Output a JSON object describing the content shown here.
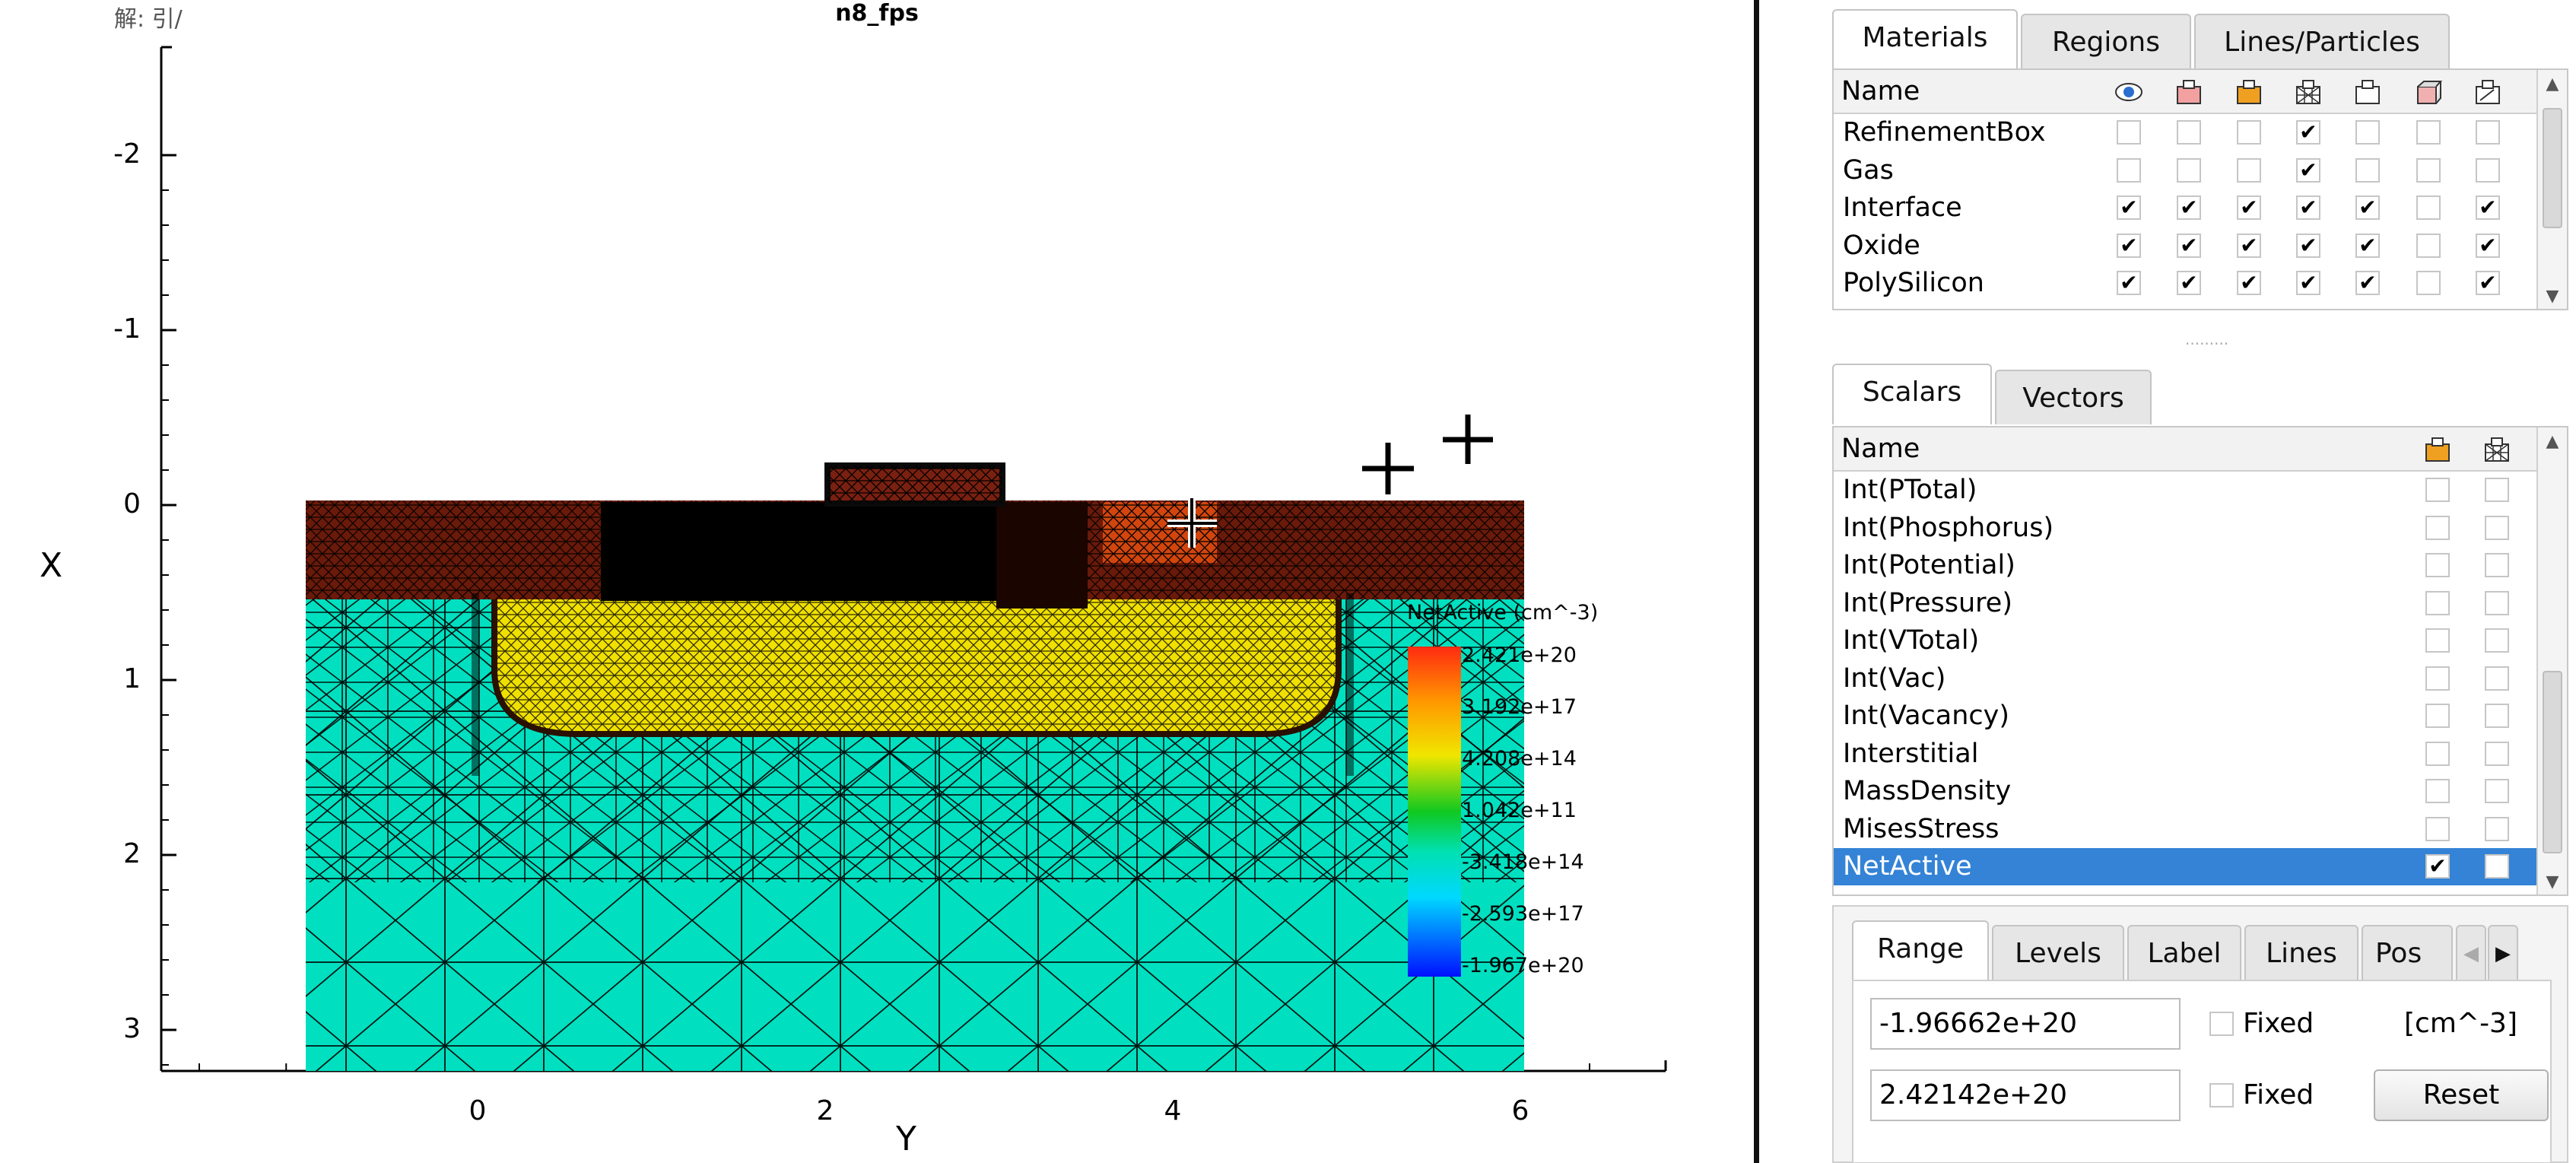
{
  "plot": {
    "title": "n8_fps",
    "corner_text": "解: 引/",
    "xlabel": "X",
    "ylabel": "Y",
    "left_ticks": [
      "-2",
      "-1",
      "0",
      "1",
      "2",
      "3"
    ],
    "bottom_ticks": [
      "0",
      "2",
      "4",
      "6"
    ],
    "colorbar": {
      "title": "NetActive (cm^-3)",
      "labels": [
        "2.421e+20",
        "3.192e+17",
        "4.208e+14",
        "1.042e+11",
        "-3.418e+14",
        "-2.593e+17",
        "-1.967e+20"
      ]
    }
  },
  "materials_panel": {
    "tabs": [
      "Materials",
      "Regions",
      "Lines/Particles"
    ],
    "active_tab": "Materials",
    "header_name": "Name",
    "header_icons": [
      "eye-icon",
      "red-fill-icon",
      "orange-fill-icon",
      "mesh-icon",
      "outline-icon",
      "box-3d-icon",
      "edit-region-icon"
    ],
    "rows": [
      {
        "name": "RefinementBox",
        "checks": [
          false,
          false,
          false,
          true,
          false,
          false,
          false
        ]
      },
      {
        "name": "Gas",
        "checks": [
          false,
          false,
          false,
          true,
          false,
          false,
          false
        ]
      },
      {
        "name": "Interface",
        "checks": [
          true,
          true,
          true,
          true,
          true,
          false,
          true
        ]
      },
      {
        "name": "Oxide",
        "checks": [
          true,
          true,
          true,
          true,
          true,
          false,
          true
        ]
      },
      {
        "name": "PolySilicon",
        "checks": [
          true,
          true,
          true,
          true,
          true,
          false,
          true
        ]
      }
    ]
  },
  "scalars_panel": {
    "tabs": [
      "Scalars",
      "Vectors"
    ],
    "active_tab": "Scalars",
    "header_name": "Name",
    "header_icons": [
      "orange-fill-icon",
      "mesh-icon"
    ],
    "rows": [
      {
        "name": "Int(PTotal)",
        "checks": [
          false,
          false
        ]
      },
      {
        "name": "Int(Phosphorus)",
        "checks": [
          false,
          false
        ]
      },
      {
        "name": "Int(Potential)",
        "checks": [
          false,
          false
        ]
      },
      {
        "name": "Int(Pressure)",
        "checks": [
          false,
          false
        ]
      },
      {
        "name": "Int(VTotal)",
        "checks": [
          false,
          false
        ]
      },
      {
        "name": "Int(Vac)",
        "checks": [
          false,
          false
        ]
      },
      {
        "name": "Int(Vacancy)",
        "checks": [
          false,
          false
        ]
      },
      {
        "name": "Interstitial",
        "checks": [
          false,
          false
        ]
      },
      {
        "name": "MassDensity",
        "checks": [
          false,
          false
        ]
      },
      {
        "name": "MisesStress",
        "checks": [
          false,
          false
        ]
      },
      {
        "name": "NetActive",
        "checks": [
          true,
          false
        ],
        "selected": true
      }
    ]
  },
  "range_panel": {
    "tabs": [
      "Range",
      "Levels",
      "Label",
      "Lines",
      "Pos"
    ],
    "active_tab": "Range",
    "min_value": "-1.96662e+20",
    "max_value": "2.42142e+20",
    "fixed_label": "Fixed",
    "units": "[cm^-3]",
    "reset_label": "Reset"
  },
  "colors": {
    "selection": "#3483d6",
    "substrate": "#00e0c0",
    "doped": "#f0e000",
    "oxide": "#7a2010"
  }
}
